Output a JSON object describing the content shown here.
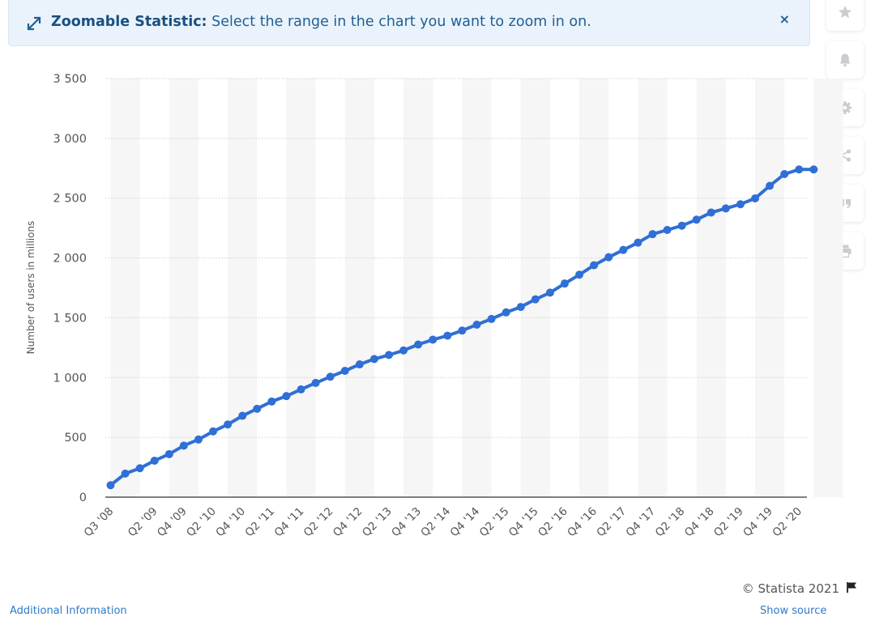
{
  "banner": {
    "title": "Zoomable Statistic:",
    "text": "Select the range in the chart you want to zoom in on.",
    "close": "×"
  },
  "sidebar": {
    "icons": [
      "star-icon",
      "bell-icon",
      "gear-icon",
      "share-icon",
      "quote-icon",
      "print-icon"
    ]
  },
  "credit": "© Statista 2021",
  "footer": {
    "left": "Additional Information",
    "right": "Show source"
  },
  "colors": {
    "line": "#2f6fd6",
    "banner_bg": "#eaf3fb",
    "banner_text": "#1f5f96"
  },
  "chart_data": {
    "type": "line",
    "title": "",
    "xlabel": "",
    "ylabel": "Number of users in millions",
    "ylim": [
      0,
      3500
    ],
    "yticks": [
      0,
      500,
      1000,
      1500,
      2000,
      2500,
      3000,
      3500
    ],
    "ytick_labels": [
      "0",
      "500",
      "1 000",
      "1 500",
      "2 000",
      "2 500",
      "3 000",
      "3 500"
    ],
    "xtick_labels": [
      "Q3 '08",
      "Q2 '09",
      "Q4 '09",
      "Q2 '10",
      "Q4 '10",
      "Q2 '11",
      "Q4 '11",
      "Q2 '12",
      "Q4 '12",
      "Q2 '13",
      "Q4 '13",
      "Q2 '14",
      "Q4 '14",
      "Q2 '15",
      "Q4 '15",
      "Q2 '16",
      "Q4 '16",
      "Q2 '17",
      "Q4 '17",
      "Q2 '18",
      "Q4 '18",
      "Q2 '19",
      "Q4 '19",
      "Q2 '20"
    ],
    "grid": true,
    "legend": "none",
    "x": [
      "Q3 '08",
      "Q4 '08",
      "Q1 '09",
      "Q2 '09",
      "Q3 '09",
      "Q4 '09",
      "Q1 '10",
      "Q2 '10",
      "Q3 '10",
      "Q4 '10",
      "Q1 '11",
      "Q2 '11",
      "Q3 '11",
      "Q4 '11",
      "Q1 '12",
      "Q2 '12",
      "Q3 '12",
      "Q4 '12",
      "Q1 '13",
      "Q2 '13",
      "Q3 '13",
      "Q4 '13",
      "Q1 '14",
      "Q2 '14",
      "Q3 '14",
      "Q4 '14",
      "Q1 '15",
      "Q2 '15",
      "Q3 '15",
      "Q4 '15",
      "Q1 '16",
      "Q2 '16",
      "Q3 '16",
      "Q4 '16",
      "Q1 '17",
      "Q2 '17",
      "Q3 '17",
      "Q4 '17",
      "Q1 '18",
      "Q2 '18",
      "Q3 '18",
      "Q4 '18",
      "Q1 '19",
      "Q2 '19",
      "Q3 '19",
      "Q4 '19",
      "Q1 '20",
      "Q2 '20",
      "Q3 '20"
    ],
    "series": [
      {
        "values": [
          100,
          197,
          242,
          305,
          360,
          431,
          482,
          550,
          608,
          680,
          739,
          800,
          845,
          901,
          955,
          1007,
          1056,
          1110,
          1155,
          1189,
          1227,
          1276,
          1317,
          1350,
          1393,
          1442,
          1490,
          1545,
          1590,
          1654,
          1710,
          1786,
          1860,
          1939,
          2006,
          2067,
          2128,
          2199,
          2234,
          2270,
          2320,
          2380,
          2414,
          2449,
          2498,
          2603,
          2701,
          2740,
          2740
        ]
      }
    ]
  }
}
